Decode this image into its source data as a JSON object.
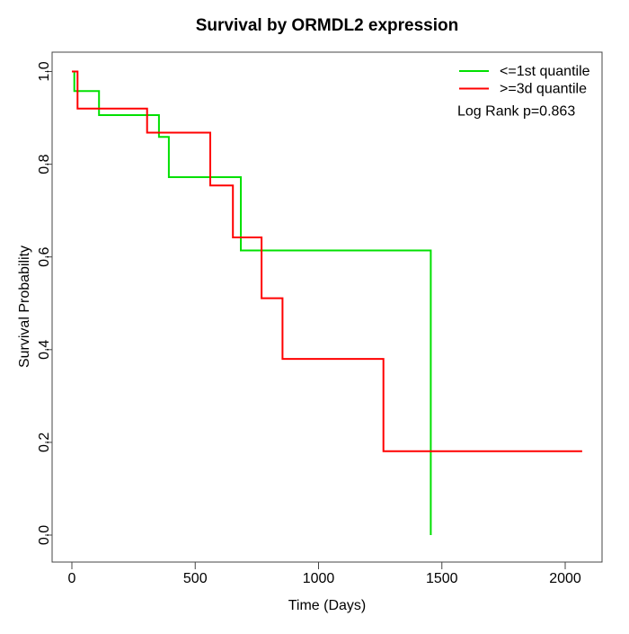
{
  "chart_data": {
    "type": "line",
    "subtype": "kaplan_meier_step",
    "title": "Survival by ORMDL2 expression",
    "xlabel": "Time (Days)",
    "ylabel": "Survival Probability",
    "xlim": [
      0,
      2100
    ],
    "ylim": [
      0.0,
      1.0
    ],
    "xticks": [
      0,
      500,
      1000,
      1500,
      2000
    ],
    "yticks": [
      0.0,
      0.2,
      0.4,
      0.6,
      0.8,
      1.0
    ],
    "grid": false,
    "legend_position": "top-right",
    "annotation": "Log Rank p=0.863",
    "series": [
      {
        "name": "<=1st quantile",
        "color": "#00E000",
        "start": [
          0,
          1.0
        ],
        "steps": [
          [
            10,
            0.958
          ],
          [
            110,
            0.906
          ],
          [
            353,
            0.859
          ],
          [
            393,
            0.772
          ],
          [
            685,
            0.614
          ],
          [
            1455,
            0.0
          ]
        ],
        "end_time": 1455
      },
      {
        "name": ">=3d quantile",
        "color": "#FF0000",
        "start": [
          0,
          1.0
        ],
        "steps": [
          [
            23,
            0.92
          ],
          [
            305,
            0.868
          ],
          [
            561,
            0.754
          ],
          [
            653,
            0.642
          ],
          [
            769,
            0.511
          ],
          [
            854,
            0.38
          ],
          [
            1263,
            0.181
          ]
        ],
        "end_time": 2069
      }
    ]
  }
}
